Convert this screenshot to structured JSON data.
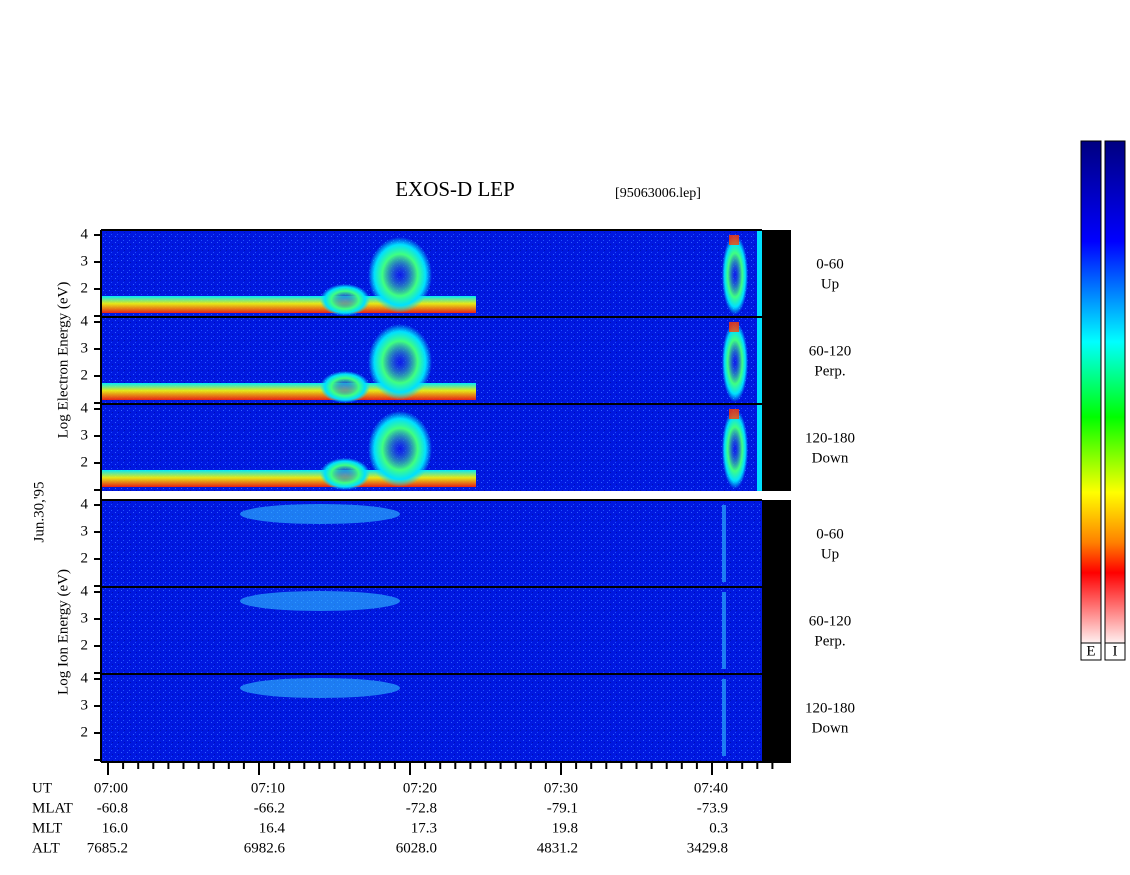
{
  "header": {
    "title": "EXOS-D LEP",
    "file": "[95063006.lep]"
  },
  "axis_labels": {
    "electron": "Log  Electron  Energy (eV)",
    "ion": "Log  Ion  Energy (eV)",
    "date": "Jun.30,'95"
  },
  "yticks": [
    "2",
    "3",
    "4"
  ],
  "panels": [
    {
      "range": "0-60",
      "direction": "Up"
    },
    {
      "range": "60-120",
      "direction": "Perp."
    },
    {
      "range": "120-180",
      "direction": "Down"
    },
    {
      "range": "0-60",
      "direction": "Up"
    },
    {
      "range": "60-120",
      "direction": "Perp."
    },
    {
      "range": "120-180",
      "direction": "Down"
    }
  ],
  "footer": {
    "rows": [
      {
        "label": "UT",
        "values": [
          "07:00",
          "07:10",
          "07:20",
          "07:30",
          "07:40"
        ]
      },
      {
        "label": "MLAT",
        "values": [
          "-60.8",
          "-66.2",
          "-72.8",
          "-79.1",
          "-73.9"
        ]
      },
      {
        "label": "MLT",
        "values": [
          "16.0",
          "16.4",
          "17.3",
          "19.8",
          "0.3"
        ]
      },
      {
        "label": "ALT",
        "values": [
          "7685.2",
          "6982.6",
          "6028.0",
          "4831.2",
          "3429.8"
        ]
      }
    ]
  },
  "colorbars": [
    "E",
    "I"
  ]
}
